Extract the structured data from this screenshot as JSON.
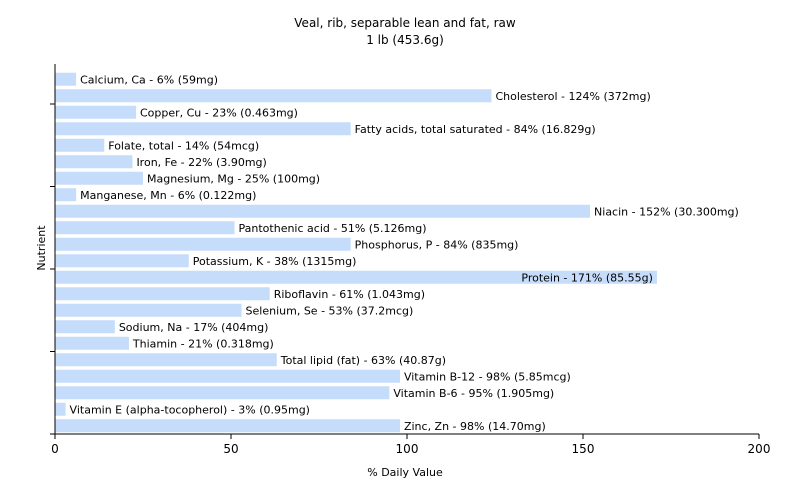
{
  "chart_data": {
    "type": "bar",
    "orientation": "horizontal",
    "title": "Veal, rib, separable lean and fat, raw",
    "subtitle": "1 lb (453.6g)",
    "xlabel": "% Daily Value",
    "ylabel": "Nutrient",
    "xlim": [
      0,
      200
    ],
    "xticks": [
      0,
      50,
      100,
      150,
      200
    ],
    "grid": false,
    "bar_color": "#c6dcfb",
    "categories": [
      "Calcium, Ca",
      "Cholesterol",
      "Copper, Cu",
      "Fatty acids, total saturated",
      "Folate, total",
      "Iron, Fe",
      "Magnesium, Mg",
      "Manganese, Mn",
      "Niacin",
      "Pantothenic acid",
      "Phosphorus, P",
      "Potassium, K",
      "Protein",
      "Riboflavin",
      "Selenium, Se",
      "Sodium, Na",
      "Thiamin",
      "Total lipid (fat)",
      "Vitamin B-12",
      "Vitamin B-6",
      "Vitamin E (alpha-tocopherol)",
      "Zinc, Zn"
    ],
    "values": [
      6,
      124,
      23,
      84,
      14,
      22,
      25,
      6,
      152,
      51,
      84,
      38,
      171,
      61,
      53,
      17,
      21,
      63,
      98,
      95,
      3,
      98
    ],
    "labels": [
      "Calcium, Ca - 6% (59mg)",
      "Cholesterol - 124% (372mg)",
      "Copper, Cu - 23% (0.463mg)",
      "Fatty acids, total saturated - 84% (16.829g)",
      "Folate, total - 14% (54mcg)",
      "Iron, Fe - 22% (3.90mg)",
      "Magnesium, Mg - 25% (100mg)",
      "Manganese, Mn - 6% (0.122mg)",
      "Niacin - 152% (30.300mg)",
      "Pantothenic acid - 51% (5.126mg)",
      "Phosphorus, P - 84% (835mg)",
      "Potassium, K - 38% (1315mg)",
      "Protein - 171% (85.55g)",
      "Riboflavin - 61% (1.043mg)",
      "Selenium, Se - 53% (37.2mcg)",
      "Sodium, Na - 17% (404mg)",
      "Thiamin - 21% (0.318mg)",
      "Total lipid (fat) - 63% (40.87g)",
      "Vitamin B-12 - 98% (5.85mcg)",
      "Vitamin B-6 - 95% (1.905mg)",
      "Vitamin E (alpha-tocopherol) - 3% (0.95mg)",
      "Zinc, Zn - 98% (14.70mg)"
    ],
    "label_inside": [
      false,
      false,
      false,
      false,
      false,
      false,
      false,
      false,
      false,
      false,
      false,
      false,
      true,
      false,
      false,
      false,
      false,
      false,
      false,
      false,
      false,
      false
    ]
  }
}
